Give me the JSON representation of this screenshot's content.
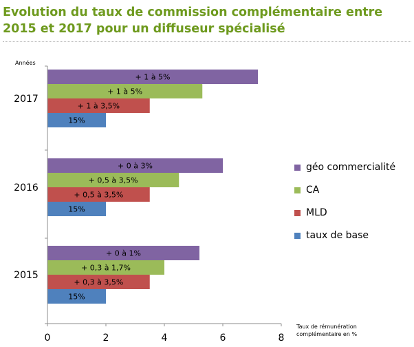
{
  "title": "Evolution du taux de commission complémentaire entre 2015 et 2017 pour un diffuseur spécialisé",
  "colors": {
    "title": "#6e9a1e",
    "geo": "#8064a2",
    "ca": "#9bbb59",
    "mld": "#c0504d",
    "base": "#4f81bd"
  },
  "chart_data": {
    "type": "bar",
    "orientation": "horizontal",
    "ylabel": "Années",
    "xlabel": "Taux de rémunération complémentaire en %",
    "xlim": [
      0,
      8
    ],
    "xticks": [
      0,
      2,
      4,
      6,
      8
    ],
    "grid": false,
    "legend_position": "right",
    "categories": [
      "2017",
      "2016",
      "2015"
    ],
    "series": [
      {
        "name": "géo commercialité",
        "color": "#8064a2",
        "values": [
          7.2,
          6.0,
          5.2
        ],
        "labels": [
          "+ 1 à 5%",
          "+ 0 à 3%",
          "+ 0 à 1%"
        ]
      },
      {
        "name": "CA",
        "color": "#9bbb59",
        "values": [
          5.3,
          4.5,
          4.0
        ],
        "labels": [
          "+ 1 à 5%",
          "+ 0,5 à 3,5%",
          "+ 0,3 à 1,7%"
        ]
      },
      {
        "name": "MLD",
        "color": "#c0504d",
        "values": [
          3.5,
          3.5,
          3.5
        ],
        "labels": [
          "+ 1 à 3,5%",
          "+ 0,5 à 3,5%",
          "+ 0,3 à 3,5%"
        ]
      },
      {
        "name": "taux de base",
        "color": "#4f81bd",
        "values": [
          2.0,
          2.0,
          2.0
        ],
        "labels": [
          "15%",
          "15%",
          "15%"
        ]
      }
    ]
  }
}
